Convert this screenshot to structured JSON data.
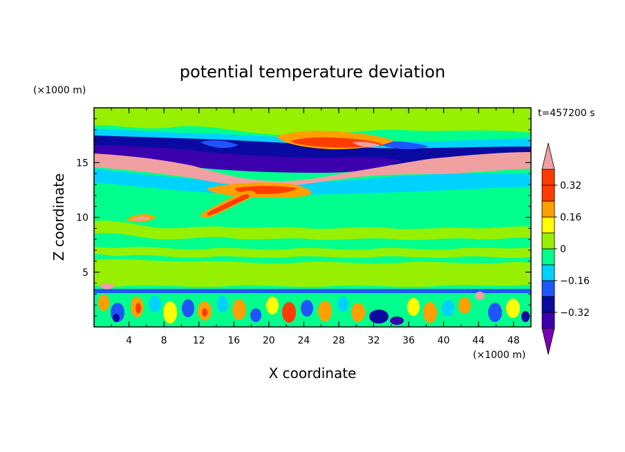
{
  "chart_data": {
    "type": "heatmap",
    "title": "potential temperature deviation",
    "xlabel": "X coordinate",
    "ylabel": "Z coordinate",
    "x_unit": "(×1000 m)",
    "y_unit": "(×1000 m)",
    "time_label": "t=457200 s",
    "xlim": [
      0,
      50
    ],
    "ylim": [
      0,
      20
    ],
    "x_ticks": [
      4,
      8,
      12,
      16,
      20,
      24,
      28,
      32,
      36,
      40,
      44,
      48
    ],
    "y_ticks": [
      5,
      10,
      15
    ],
    "colorbar": {
      "ticks": [
        0.32,
        0.16,
        0,
        -0.16,
        -0.32
      ],
      "tick_labels": [
        "0.32",
        "0.16",
        "0",
        "−0.16",
        "−0.32"
      ],
      "levels": [
        -0.4,
        -0.32,
        -0.24,
        -0.16,
        -0.08,
        0,
        0.08,
        0.16,
        0.24,
        0.32,
        0.4
      ],
      "colors": [
        "#7a00b4",
        "#3c00ae",
        "#0a0aa0",
        "#1e55ff",
        "#00d2ff",
        "#00ff8c",
        "#96f000",
        "#ffff00",
        "#ffa000",
        "#ff3c00",
        "#f0a0a0"
      ]
    }
  }
}
